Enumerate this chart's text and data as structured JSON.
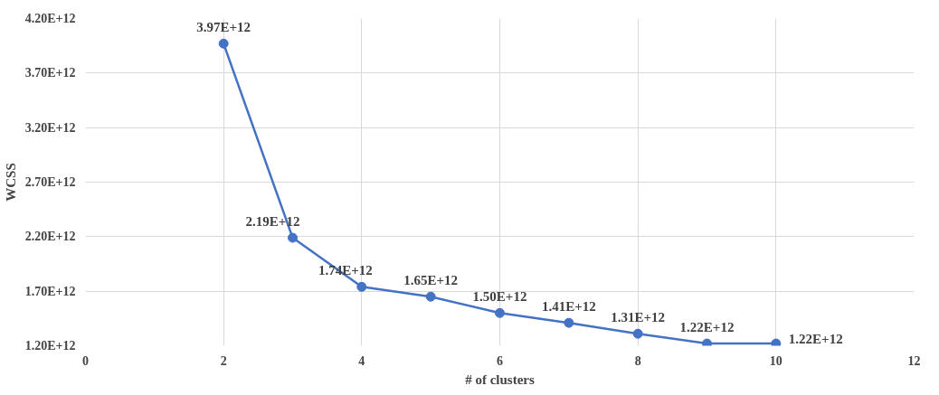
{
  "chart_data": {
    "type": "line",
    "xlabel": "# of clusters",
    "ylabel": "WCSS",
    "x": [
      2,
      3,
      4,
      5,
      6,
      7,
      8,
      9,
      10
    ],
    "series": [
      {
        "color": "#4472c4",
        "values": [
          3970000000000.0,
          2190000000000.0,
          1740000000000.0,
          1650000000000.0,
          1500000000000.0,
          1410000000000.0,
          1310000000000.0,
          1220000000000.0,
          1220000000000.0
        ],
        "value_labels": [
          "3.97E+12",
          "2.19E+12",
          "1.74E+12",
          "1.65E+12",
          "1.50E+12",
          "1.41E+12",
          "1.31E+12",
          "1.22E+12",
          "1.22E+12"
        ]
      }
    ],
    "xlim": [
      0,
      12
    ],
    "xticks": [
      0,
      2,
      4,
      6,
      8,
      10,
      12
    ],
    "ylim": [
      1200000000000.0,
      4200000000000.0
    ],
    "yticks": [
      {
        "value": 1200000000000.0,
        "label": "1.20E+12"
      },
      {
        "value": 1700000000000.0,
        "label": "1.70E+12"
      },
      {
        "value": 2200000000000.0,
        "label": "2.20E+12"
      },
      {
        "value": 2700000000000.0,
        "label": "2.70E+12"
      },
      {
        "value": 3200000000000.0,
        "label": "3.20E+12"
      },
      {
        "value": 3700000000000.0,
        "label": "3.70E+12"
      },
      {
        "value": 4200000000000.0,
        "label": "4.20E+12"
      }
    ],
    "grid": true,
    "marker": "circle",
    "line_style": "solid"
  }
}
